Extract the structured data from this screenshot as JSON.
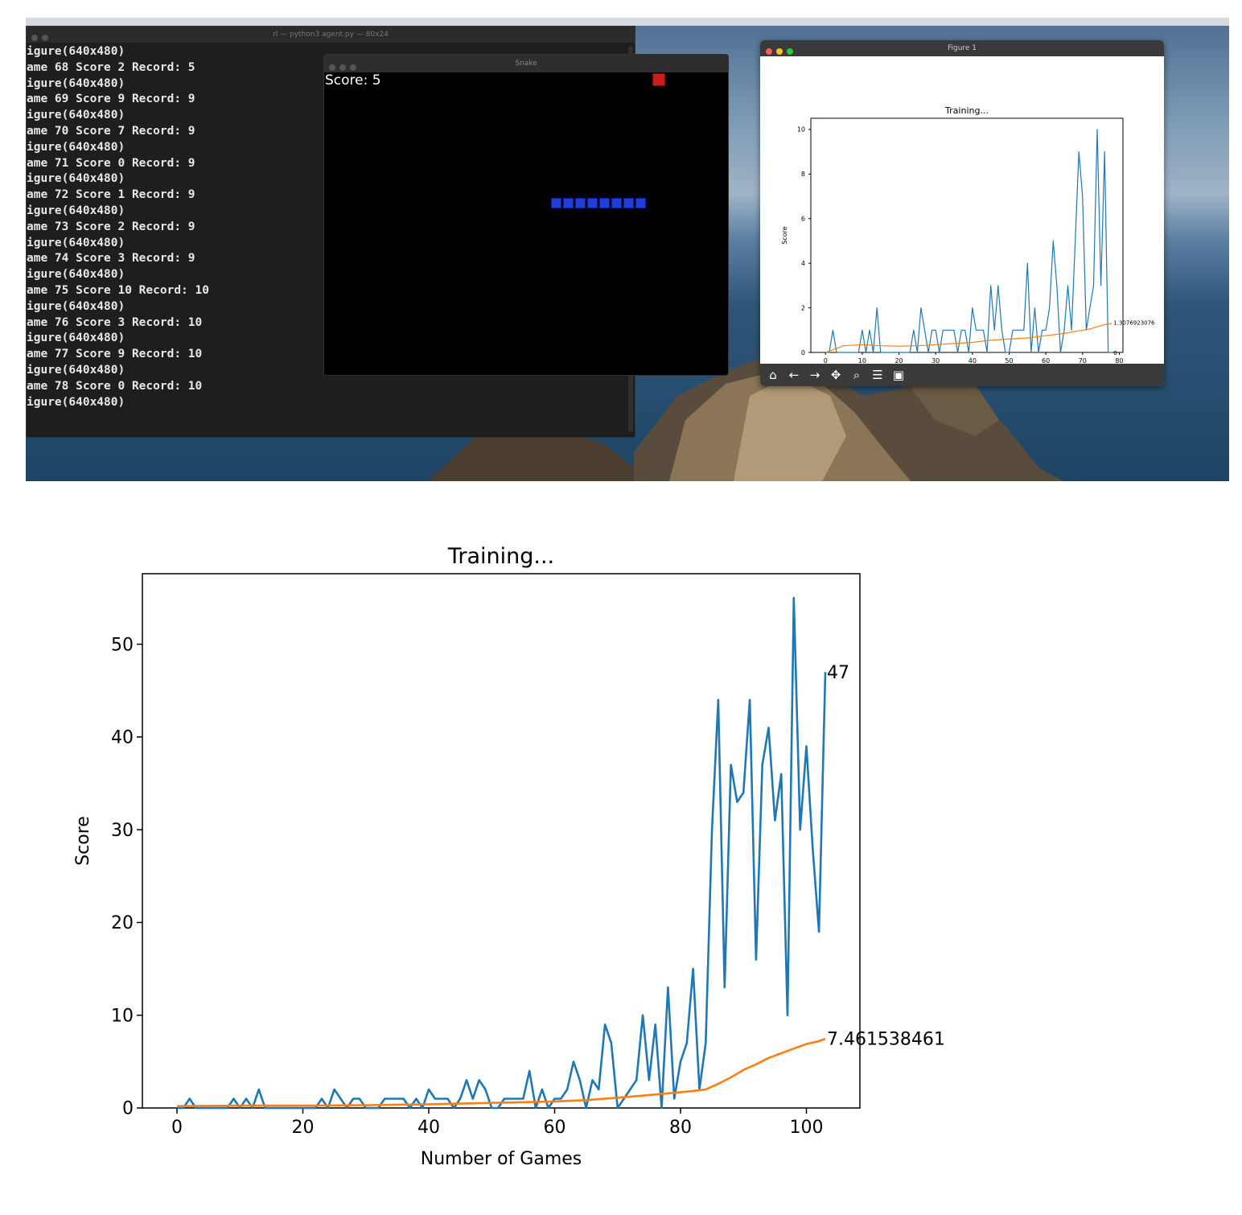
{
  "terminal": {
    "title": "rl — python3 agent.py — 80x24",
    "lines": [
      "igure(640x480)",
      "ame 68 Score 2 Record: 5",
      "igure(640x480)",
      "ame 69 Score 9 Record: 9",
      "igure(640x480)",
      "ame 70 Score 7 Record: 9",
      "igure(640x480)",
      "ame 71 Score 0 Record: 9",
      "igure(640x480)",
      "ame 72 Score 1 Record: 9",
      "igure(640x480)",
      "ame 73 Score 2 Record: 9",
      "igure(640x480)",
      "ame 74 Score 3 Record: 9",
      "igure(640x480)",
      "ame 75 Score 10 Record: 10",
      "igure(640x480)",
      "ame 76 Score 3 Record: 10",
      "igure(640x480)",
      "ame 77 Score 9 Record: 10",
      "igure(640x480)",
      "ame 78 Score 0 Record: 10",
      "igure(640x480)"
    ]
  },
  "snake_window": {
    "title": "Snake",
    "score_label": "Score: 5",
    "food_color": "#c81e1e",
    "snake_color": "#1f3fd8",
    "snake_segments": 8
  },
  "figure_window": {
    "title": "Figure 1",
    "toolbar": [
      "home-icon",
      "back-arrow-icon",
      "forward-arrow-icon",
      "pan-icon",
      "zoom-icon",
      "configure-icon",
      "save-icon"
    ]
  },
  "chart_data": [
    {
      "type": "line",
      "title": "Training...",
      "xlabel": "Number of Games",
      "ylabel": "Score",
      "xlim": [
        -4,
        81
      ],
      "ylim": [
        0,
        10.5
      ],
      "xticks": [
        0,
        10,
        20,
        30,
        40,
        50,
        60,
        70,
        80
      ],
      "yticks": [
        0,
        2,
        4,
        6,
        8,
        10
      ],
      "series": [
        {
          "color": "#1f77b4",
          "x": [
            0,
            1,
            2,
            3,
            4,
            5,
            6,
            7,
            8,
            9,
            10,
            11,
            12,
            13,
            14,
            15,
            16,
            17,
            18,
            19,
            20,
            21,
            22,
            23,
            24,
            25,
            26,
            27,
            28,
            29,
            30,
            31,
            32,
            33,
            34,
            35,
            36,
            37,
            38,
            39,
            40,
            41,
            42,
            43,
            44,
            45,
            46,
            47,
            48,
            49,
            50,
            51,
            52,
            53,
            54,
            55,
            56,
            57,
            58,
            59,
            60,
            61,
            62,
            63,
            64,
            65,
            66,
            67,
            68,
            69,
            70,
            71,
            72,
            73,
            74,
            75,
            76,
            77,
            78
          ],
          "values": [
            0,
            0,
            1,
            0,
            0,
            0,
            0,
            0,
            0,
            0,
            1,
            0,
            1,
            0,
            2,
            0,
            0,
            0,
            0,
            0,
            0,
            0,
            0,
            0,
            1,
            0,
            2,
            1,
            0,
            1,
            1,
            0,
            1,
            1,
            1,
            1,
            0,
            1,
            1,
            0,
            2,
            1,
            1,
            1,
            0,
            3,
            1,
            3,
            1,
            0,
            0,
            1,
            1,
            1,
            1,
            4,
            0,
            2,
            0,
            1,
            1,
            2,
            5,
            3,
            0,
            1,
            3,
            1,
            5,
            9,
            7,
            1,
            2,
            3,
            10,
            3,
            9,
            0,
            0
          ]
        },
        {
          "color": "#ff7f0e",
          "x": [
            0,
            5,
            10,
            15,
            20,
            25,
            30,
            35,
            40,
            45,
            50,
            55,
            60,
            65,
            70,
            72,
            74,
            76,
            78
          ],
          "values": [
            0,
            0.3,
            0.35,
            0.3,
            0.28,
            0.3,
            0.35,
            0.4,
            0.45,
            0.55,
            0.6,
            0.65,
            0.75,
            0.85,
            1.0,
            1.05,
            1.15,
            1.25,
            1.3
          ]
        }
      ],
      "annotations": [
        {
          "text": "1.3076923076",
          "x": 78,
          "y": 1.35
        },
        {
          "text": "0",
          "x": 78,
          "y": 0
        }
      ]
    },
    {
      "type": "line",
      "title": "Training...",
      "xlabel": "Number of Games",
      "ylabel": "Score",
      "xlim": [
        -5.5,
        108.5
      ],
      "ylim": [
        0,
        57.6
      ],
      "xticks": [
        0,
        20,
        40,
        60,
        80,
        100
      ],
      "yticks": [
        0,
        10,
        20,
        30,
        40,
        50
      ],
      "series": [
        {
          "color": "#1f77b4",
          "x": [
            0,
            1,
            2,
            3,
            4,
            5,
            6,
            7,
            8,
            9,
            10,
            11,
            12,
            13,
            14,
            15,
            16,
            17,
            18,
            19,
            20,
            21,
            22,
            23,
            24,
            25,
            26,
            27,
            28,
            29,
            30,
            31,
            32,
            33,
            34,
            35,
            36,
            37,
            38,
            39,
            40,
            41,
            42,
            43,
            44,
            45,
            46,
            47,
            48,
            49,
            50,
            51,
            52,
            53,
            54,
            55,
            56,
            57,
            58,
            59,
            60,
            61,
            62,
            63,
            64,
            65,
            66,
            67,
            68,
            69,
            70,
            71,
            72,
            73,
            74,
            75,
            76,
            77,
            78,
            79,
            80,
            81,
            82,
            83,
            84,
            85,
            86,
            87,
            88,
            89,
            90,
            91,
            92,
            93,
            94,
            95,
            96,
            97,
            98,
            99,
            100,
            101,
            102,
            103
          ],
          "values": [
            0,
            0,
            1,
            0,
            0,
            0,
            0,
            0,
            0,
            1,
            0,
            1,
            0,
            2,
            0,
            0,
            0,
            0,
            0,
            0,
            0,
            0,
            0,
            1,
            0,
            2,
            1,
            0,
            1,
            1,
            0,
            0,
            0,
            1,
            1,
            1,
            1,
            0,
            1,
            0,
            2,
            1,
            1,
            1,
            0,
            1,
            3,
            1,
            3,
            2,
            0,
            0,
            1,
            1,
            1,
            1,
            4,
            0,
            2,
            0,
            1,
            1,
            2,
            5,
            3,
            0,
            3,
            2,
            9,
            7,
            0,
            1,
            2,
            3,
            10,
            3,
            9,
            0,
            13,
            1,
            5,
            7,
            15,
            2,
            7,
            30,
            44,
            13,
            37,
            33,
            34,
            44,
            16,
            37,
            41,
            31,
            36,
            10,
            55,
            30,
            39,
            28,
            19,
            47
          ]
        },
        {
          "color": "#ff7f0e",
          "x": [
            0,
            10,
            20,
            30,
            40,
            50,
            60,
            65,
            70,
            75,
            80,
            83,
            84,
            86,
            88,
            90,
            92,
            94,
            96,
            98,
            100,
            102,
            103
          ],
          "values": [
            0.2,
            0.25,
            0.25,
            0.3,
            0.4,
            0.55,
            0.7,
            0.85,
            1.1,
            1.4,
            1.7,
            1.9,
            2.0,
            2.6,
            3.3,
            4.1,
            4.7,
            5.4,
            5.9,
            6.4,
            6.9,
            7.2,
            7.46
          ]
        }
      ],
      "annotations": [
        {
          "text": "47",
          "x": 103,
          "y": 47
        },
        {
          "text": "7.461538461",
          "x": 103,
          "y": 7.46
        }
      ]
    }
  ]
}
